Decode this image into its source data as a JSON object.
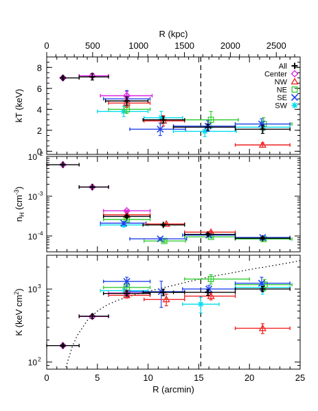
{
  "chart_data": {
    "type": "scatter",
    "top_axis": {
      "label": "R (kpc)",
      "range": [
        0,
        2760
      ],
      "ticks": [
        0,
        500,
        1000,
        1500,
        2000,
        2500
      ],
      "tick_labels": [
        "0",
        "500",
        "1000",
        "1500",
        "2000",
        "2500"
      ]
    },
    "x": {
      "label": "R (arcmin)",
      "range": [
        0,
        25
      ],
      "ticks": [
        0,
        5,
        10,
        15,
        20,
        25
      ],
      "tick_labels": [
        "0",
        "5",
        "10",
        "15",
        "20",
        "25"
      ]
    },
    "dashed_line_x": 15.2,
    "legend": {
      "placement": "top-right",
      "entries": [
        {
          "name": "All",
          "color": "#000000",
          "marker": "plus"
        },
        {
          "name": "Center",
          "color": "#dd22dd",
          "marker": "diamond"
        },
        {
          "name": "NW",
          "color": "#ee2222",
          "marker": "triangle"
        },
        {
          "name": "NE",
          "color": "#33cc33",
          "marker": "square"
        },
        {
          "name": "SE",
          "color": "#2244ee",
          "marker": "x"
        },
        {
          "name": "SW",
          "color": "#00ddee",
          "marker": "star"
        }
      ]
    },
    "panels": [
      {
        "ylabel": "kT (keV)",
        "log": false,
        "yrange": [
          -0.3,
          9
        ],
        "ticks": [
          0,
          2,
          4,
          6,
          8
        ],
        "tick_labels": [
          "0",
          "2",
          "4",
          "6",
          "8"
        ],
        "points": [
          {
            "s": "Center",
            "x": 1.6,
            "xerr": [
              0,
              0
            ],
            "y": 7.0,
            "yerr": 0.1
          },
          {
            "s": "All",
            "x": 1.6,
            "xerr": [
              1.6,
              3.2
            ],
            "y": 7.0,
            "yerr": 0.15
          },
          {
            "s": "Center",
            "x": 4.5,
            "xerr": [
              3.2,
              6.1
            ],
            "y": 7.2,
            "yerr": 0.2
          },
          {
            "s": "All",
            "x": 4.5,
            "xerr": [
              3.2,
              6.1
            ],
            "y": 7.1,
            "yerr": 0.3
          },
          {
            "s": "Center",
            "x": 7.9,
            "xerr": [
              5.3,
              10.4
            ],
            "y": 5.3,
            "yerr": 0.4
          },
          {
            "s": "NW",
            "x": 7.9,
            "xerr": [
              6.1,
              10.2
            ],
            "y": 4.6,
            "yerr": 0.4
          },
          {
            "s": "SE",
            "x": 7.9,
            "xerr": [
              5.6,
              10.2
            ],
            "y": 5.0,
            "yerr": 0.8
          },
          {
            "s": "All",
            "x": 7.9,
            "xerr": [
              5.8,
              10.0
            ],
            "y": 4.8,
            "yerr": 0.4
          },
          {
            "s": "NE",
            "x": 7.9,
            "xerr": [
              6.1,
              10.2
            ],
            "y": 4.0,
            "yerr": 0.4
          },
          {
            "s": "SW",
            "x": 7.6,
            "xerr": [
              5.0,
              10.0
            ],
            "y": 3.8,
            "yerr": 0.5
          },
          {
            "s": "NW",
            "x": 11.5,
            "xerr": [
              9.6,
              13.6
            ],
            "y": 2.9,
            "yerr": 0.5
          },
          {
            "s": "SW",
            "x": 11.3,
            "xerr": [
              9.6,
              13.4
            ],
            "y": 3.2,
            "yerr": 0.6
          },
          {
            "s": "All",
            "x": 11.5,
            "xerr": [
              9.5,
              13.6
            ],
            "y": 3.0,
            "yerr": 0.3
          },
          {
            "s": "SE",
            "x": 11.2,
            "xerr": [
              8.2,
              13.7
            ],
            "y": 2.1,
            "yerr": 0.6
          },
          {
            "s": "NE",
            "x": 16.2,
            "xerr": [
              13.6,
              18.9
            ],
            "y": 3.0,
            "yerr": 0.8
          },
          {
            "s": "All",
            "x": 15.9,
            "xerr": [
              12.5,
              18.6
            ],
            "y": 2.3,
            "yerr": 0.3
          },
          {
            "s": "SE",
            "x": 15.9,
            "xerr": [
              12.5,
              18.6
            ],
            "y": 2.4,
            "yerr": 0.5
          },
          {
            "s": "SW",
            "x": 15.6,
            "xerr": [
              12.5,
              18.7
            ],
            "y": 1.9,
            "yerr": 0.5
          },
          {
            "s": "NE",
            "x": 21.4,
            "xerr": [
              18.6,
              24.2
            ],
            "y": 2.6,
            "yerr": 0.6
          },
          {
            "s": "SE",
            "x": 21.2,
            "xerr": [
              18.6,
              24.0
            ],
            "y": 2.6,
            "yerr": 0.5
          },
          {
            "s": "SW",
            "x": 21.3,
            "xerr": [
              18.6,
              24.0
            ],
            "y": 2.3,
            "yerr": 0.6
          },
          {
            "s": "All",
            "x": 21.3,
            "xerr": [
              18.6,
              24.0
            ],
            "y": 2.1,
            "yerr": 0.4
          },
          {
            "s": "NW",
            "x": 21.3,
            "xerr": [
              18.6,
              24.0
            ],
            "y": 0.6,
            "yerr": 0.2
          }
        ]
      },
      {
        "ylabel": "n_H (cm^-3)",
        "ylabel_main": "n",
        "ylabel_sub": "H",
        "ylabel_unit": " (cm",
        "ylabel_exp": "-3",
        "ylabel_close": ")",
        "log": true,
        "yrange": [
          4e-05,
          0.01
        ],
        "ticks": [
          0.0001,
          0.001,
          0.01
        ],
        "tick_labels": [
          "10",
          "10",
          "10"
        ],
        "tick_exps": [
          "-4",
          "-3",
          "-2"
        ],
        "points": [
          {
            "s": "Center",
            "x": 1.6,
            "xerr": [
              0,
              0
            ],
            "y": 0.0062,
            "yerr": 0.0002
          },
          {
            "s": "All",
            "x": 1.6,
            "xerr": [
              0,
              3.2
            ],
            "y": 0.0062,
            "yerr": 0.0002
          },
          {
            "s": "Center",
            "x": 4.5,
            "xerr": [
              3.2,
              6.1
            ],
            "y": 0.0017,
            "yerr": 5e-05
          },
          {
            "s": "All",
            "x": 4.5,
            "xerr": [
              3.2,
              6.1
            ],
            "y": 0.0017,
            "yerr": 5e-05
          },
          {
            "s": "Center",
            "x": 7.9,
            "xerr": [
              5.6,
              10.2
            ],
            "y": 0.00043,
            "yerr": 2e-05
          },
          {
            "s": "NW",
            "x": 7.9,
            "xerr": [
              5.6,
              10.2
            ],
            "y": 0.00034,
            "yerr": 2e-05
          },
          {
            "s": "All",
            "x": 7.9,
            "xerr": [
              5.6,
              10.2
            ],
            "y": 0.00031,
            "yerr": 2e-05
          },
          {
            "s": "NE",
            "x": 7.9,
            "xerr": [
              5.6,
              10.2
            ],
            "y": 0.00026,
            "yerr": 2e-05
          },
          {
            "s": "SE",
            "x": 7.6,
            "xerr": [
              5.3,
              9.8
            ],
            "y": 0.00021,
            "yerr": 2e-05
          },
          {
            "s": "SW",
            "x": 7.6,
            "xerr": [
              5.3,
              10.0
            ],
            "y": 0.00019,
            "yerr": 2e-05
          },
          {
            "s": "NW",
            "x": 11.8,
            "xerr": [
              9.8,
              13.6
            ],
            "y": 0.0002,
            "yerr": 1e-05
          },
          {
            "s": "All",
            "x": 11.5,
            "xerr": [
              9.5,
              13.6
            ],
            "y": 0.00019,
            "yerr": 1e-05
          },
          {
            "s": "NE",
            "x": 11.6,
            "xerr": [
              9.6,
              13.7
            ],
            "y": 7.5e-05,
            "yerr": 6e-06
          },
          {
            "s": "SE",
            "x": 11.2,
            "xerr": [
              8.2,
              13.8
            ],
            "y": 8.5e-05,
            "yerr": 6e-06
          },
          {
            "s": "NW",
            "x": 16.2,
            "xerr": [
              13.6,
              18.6
            ],
            "y": 0.000125,
            "yerr": 8e-06
          },
          {
            "s": "All",
            "x": 15.9,
            "xerr": [
              13.6,
              18.6
            ],
            "y": 0.00011,
            "yerr": 6e-06
          },
          {
            "s": "SE",
            "x": 16.0,
            "xerr": [
              13.4,
              18.6
            ],
            "y": 0.000105,
            "yerr": 6e-06
          },
          {
            "s": "NE",
            "x": 16.2,
            "xerr": [
              13.6,
              18.6
            ],
            "y": 9.5e-05,
            "yerr": 6e-06
          },
          {
            "s": "SE",
            "x": 21.3,
            "xerr": [
              18.6,
              24.0
            ],
            "y": 9.2e-05,
            "yerr": 6e-06
          },
          {
            "s": "All",
            "x": 21.3,
            "xerr": [
              18.6,
              24.0
            ],
            "y": 8.8e-05,
            "yerr": 5e-06
          },
          {
            "s": "NE",
            "x": 21.4,
            "xerr": [
              18.6,
              24.2
            ],
            "y": 8.4e-05,
            "yerr": 5e-06
          },
          {
            "s": "SW",
            "x": 21.3,
            "xerr": [
              18.6,
              24.0
            ],
            "y": 8.6e-05,
            "yerr": 5e-06
          }
        ]
      },
      {
        "ylabel": "K (keV cm^2)",
        "ylabel_main": "K (keV cm",
        "ylabel_exp": "2",
        "ylabel_close": ")",
        "log": true,
        "yrange": [
          80,
          2900
        ],
        "ticks": [
          100,
          1000
        ],
        "tick_labels": [
          "10",
          "10"
        ],
        "tick_exps": [
          "2",
          "3"
        ],
        "points": [
          {
            "s": "Center",
            "x": 1.6,
            "xerr": [
              0,
              0
            ],
            "y": 168,
            "yerr": 6
          },
          {
            "s": "All",
            "x": 1.6,
            "xerr": [
              0,
              3.2
            ],
            "y": 168,
            "yerr": 6
          },
          {
            "s": "Center",
            "x": 4.5,
            "xerr": [
              3.2,
              6.1
            ],
            "y": 420,
            "yerr": 20
          },
          {
            "s": "All",
            "x": 4.5,
            "xerr": [
              3.2,
              6.1
            ],
            "y": 425,
            "yerr": 25
          },
          {
            "s": "SE",
            "x": 7.9,
            "xerr": [
              5.6,
              10.2
            ],
            "y": 1270,
            "yerr": 180
          },
          {
            "s": "NE",
            "x": 7.9,
            "xerr": [
              5.6,
              10.2
            ],
            "y": 1050,
            "yerr": 130
          },
          {
            "s": "SW",
            "x": 7.7,
            "xerr": [
              5.3,
              10.0
            ],
            "y": 950,
            "yerr": 130
          },
          {
            "s": "Center",
            "x": 7.9,
            "xerr": [
              6.1,
              10.2
            ],
            "y": 880,
            "yerr": 80
          },
          {
            "s": "All",
            "x": 7.9,
            "xerr": [
              5.6,
              10.2
            ],
            "y": 870,
            "yerr": 70
          },
          {
            "s": "NW",
            "x": 7.9,
            "xerr": [
              6.1,
              10.2
            ],
            "y": 820,
            "yerr": 70
          },
          {
            "s": "SE",
            "x": 11.3,
            "xerr": [
              8.2,
              13.6
            ],
            "y": 920,
            "yerr": 360
          },
          {
            "s": "All",
            "x": 11.5,
            "xerr": [
              9.5,
              13.6
            ],
            "y": 900,
            "yerr": 90
          },
          {
            "s": "NW",
            "x": 11.8,
            "xerr": [
              9.6,
              13.6
            ],
            "y": 720,
            "yerr": 130
          },
          {
            "s": "NE",
            "x": 16.2,
            "xerr": [
              13.6,
              20.0
            ],
            "y": 1370,
            "yerr": 200
          },
          {
            "s": "SE",
            "x": 16.0,
            "xerr": [
              13.4,
              18.6
            ],
            "y": 1000,
            "yerr": 120
          },
          {
            "s": "All",
            "x": 15.9,
            "xerr": [
              12.5,
              18.6
            ],
            "y": 900,
            "yerr": 80
          },
          {
            "s": "NW",
            "x": 16.2,
            "xerr": [
              13.6,
              18.6
            ],
            "y": 800,
            "yerr": 90
          },
          {
            "s": "SW",
            "x": 15.2,
            "xerr": [
              13.4,
              17.0
            ],
            "y": 620,
            "yerr": 150
          },
          {
            "s": "SE",
            "x": 21.2,
            "xerr": [
              18.6,
              24.0
            ],
            "y": 1200,
            "yerr": 250
          },
          {
            "s": "NE",
            "x": 21.5,
            "xerr": [
              18.6,
              24.2
            ],
            "y": 1150,
            "yerr": 200
          },
          {
            "s": "SW",
            "x": 21.3,
            "xerr": [
              18.6,
              24.0
            ],
            "y": 1050,
            "yerr": 200
          },
          {
            "s": "All",
            "x": 21.3,
            "xerr": [
              18.6,
              24.0
            ],
            "y": 1000,
            "yerr": 80
          },
          {
            "s": "NW",
            "x": 21.3,
            "xerr": [
              18.6,
              24.0
            ],
            "y": 290,
            "yerr": 45
          }
        ],
        "dotted_curve": {
          "x": [
            1.9,
            2.5,
            3.0,
            4.0,
            5.0,
            6.0,
            7.0,
            8.0,
            9.0,
            10.0,
            12.0,
            14.0,
            16.0,
            18.0,
            20.0,
            22.0,
            24.0,
            25.0
          ],
          "y": [
            85,
            160,
            230,
            370,
            500,
            610,
            700,
            780,
            860,
            930,
            1080,
            1260,
            1460,
            1640,
            1850,
            2050,
            2300,
            2450
          ]
        }
      }
    ]
  }
}
